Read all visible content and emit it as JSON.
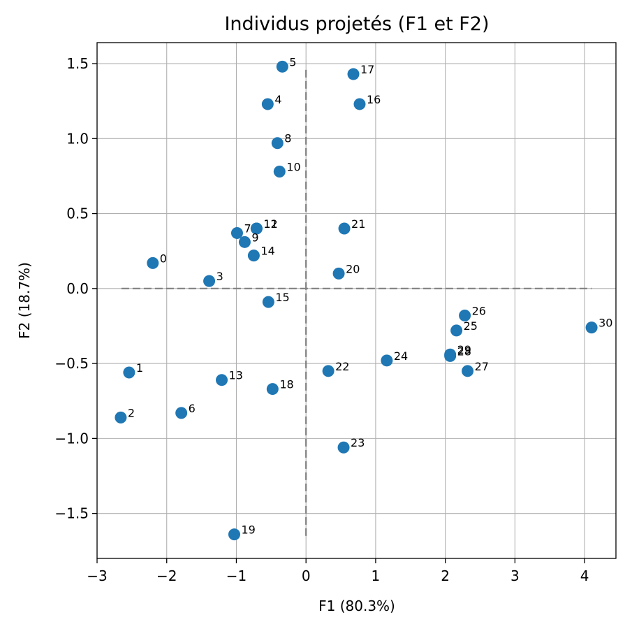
{
  "chart_data": {
    "type": "scatter",
    "title": "Individus projetés (F1 et F2)",
    "xlabel": "F1 (80.3%)",
    "ylabel": "F2 (18.7%)",
    "xlim": [
      -3.0,
      4.45
    ],
    "ylim": [
      -1.8,
      1.64
    ],
    "xticks": [
      -3,
      -2,
      -1,
      0,
      1,
      2,
      3,
      4
    ],
    "xtick_labels": [
      "−3",
      "−2",
      "−1",
      "0",
      "1",
      "2",
      "3",
      "4"
    ],
    "yticks": [
      -1.5,
      -1.0,
      -0.5,
      0.0,
      0.5,
      1.0,
      1.5
    ],
    "ytick_labels": [
      "−1.5",
      "−1.0",
      "−0.5",
      "0.0",
      "0.5",
      "1.0",
      "1.5"
    ],
    "grid": true,
    "reference_lines": {
      "h_from": [
        -2.65,
        4.1
      ],
      "v_from": [
        -1.65,
        1.48
      ]
    },
    "marker_color": "#1f77b4",
    "refline_color": "#808080",
    "points": [
      {
        "label": "0",
        "x": -2.2,
        "y": 0.17
      },
      {
        "label": "1",
        "x": -2.54,
        "y": -0.56
      },
      {
        "label": "2",
        "x": -2.66,
        "y": -0.86
      },
      {
        "label": "3",
        "x": -1.39,
        "y": 0.05
      },
      {
        "label": "4",
        "x": -0.55,
        "y": 1.23
      },
      {
        "label": "5",
        "x": -0.34,
        "y": 1.48
      },
      {
        "label": "6",
        "x": -1.79,
        "y": -0.83
      },
      {
        "label": "7",
        "x": -0.99,
        "y": 0.37
      },
      {
        "label": "8",
        "x": -0.41,
        "y": 0.97
      },
      {
        "label": "9",
        "x": -0.88,
        "y": 0.31
      },
      {
        "label": "10",
        "x": -0.38,
        "y": 0.78
      },
      {
        "label": "11",
        "x": -0.71,
        "y": 0.4
      },
      {
        "label": "12",
        "x": -0.71,
        "y": 0.4
      },
      {
        "label": "13",
        "x": -1.21,
        "y": -0.61
      },
      {
        "label": "14",
        "x": -0.75,
        "y": 0.22
      },
      {
        "label": "15",
        "x": -0.54,
        "y": -0.09
      },
      {
        "label": "16",
        "x": 0.77,
        "y": 1.23
      },
      {
        "label": "17",
        "x": 0.68,
        "y": 1.43
      },
      {
        "label": "18",
        "x": -0.48,
        "y": -0.67
      },
      {
        "label": "19",
        "x": -1.03,
        "y": -1.64
      },
      {
        "label": "20",
        "x": 0.47,
        "y": 0.1
      },
      {
        "label": "21",
        "x": 0.55,
        "y": 0.4
      },
      {
        "label": "22",
        "x": 0.32,
        "y": -0.55
      },
      {
        "label": "23",
        "x": 0.54,
        "y": -1.06
      },
      {
        "label": "24",
        "x": 1.16,
        "y": -0.48
      },
      {
        "label": "25",
        "x": 2.16,
        "y": -0.28
      },
      {
        "label": "26",
        "x": 2.28,
        "y": -0.18
      },
      {
        "label": "27",
        "x": 2.32,
        "y": -0.55
      },
      {
        "label": "28",
        "x": 2.07,
        "y": -0.45
      },
      {
        "label": "29",
        "x": 2.07,
        "y": -0.44
      },
      {
        "label": "30",
        "x": 4.1,
        "y": -0.26
      }
    ]
  }
}
